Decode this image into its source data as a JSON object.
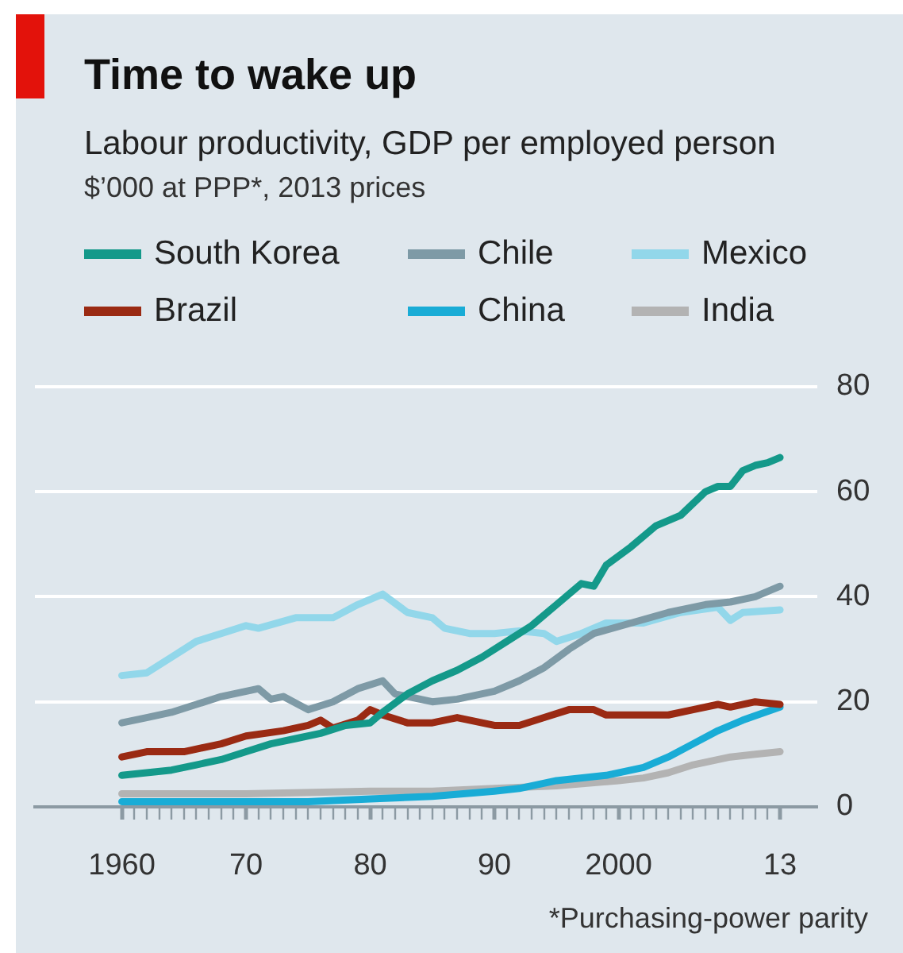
{
  "chart_data": {
    "type": "line",
    "title": "Time to wake up",
    "subtitle": "Labour productivity, GDP per employed person",
    "annotations": [
      "$’000 at PPP*, 2013 prices",
      "*Purchasing-power parity"
    ],
    "series": [
      {
        "name": "South Korea",
        "color": "#14998a",
        "x": [
          1960,
          1962,
          1964,
          1966,
          1968,
          1970,
          1972,
          1974,
          1976,
          1978,
          1980,
          1981,
          1983,
          1985,
          1987,
          1989,
          1991,
          1993,
          1995,
          1997,
          1998,
          1999,
          2001,
          2003,
          2005,
          2007,
          2008,
          2009,
          2010,
          2011,
          2012,
          2013
        ],
        "values": [
          6,
          6.5,
          7,
          8,
          9,
          10.5,
          12,
          13,
          14,
          15.5,
          16,
          18,
          21.5,
          24,
          26,
          28.5,
          31.5,
          34.5,
          38.5,
          42.5,
          42,
          46,
          49.5,
          53.5,
          55.5,
          60,
          61,
          61,
          64,
          65,
          65.5,
          66.5
        ]
      },
      {
        "name": "Chile",
        "color": "#7e9aa6",
        "x": [
          1960,
          1962,
          1964,
          1966,
          1968,
          1971,
          1972,
          1973,
          1975,
          1977,
          1979,
          1981,
          1982,
          1985,
          1987,
          1990,
          1992,
          1994,
          1996,
          1998,
          2001,
          2004,
          2007,
          2009,
          2011,
          2013
        ],
        "values": [
          16,
          17,
          18,
          19.5,
          21,
          22.5,
          20.5,
          21,
          18.5,
          20,
          22.5,
          24,
          21.5,
          20,
          20.5,
          22,
          24,
          26.5,
          30,
          33,
          35,
          37,
          38.5,
          39,
          40,
          42
        ]
      },
      {
        "name": "Mexico",
        "color": "#92d7ea",
        "x": [
          1960,
          1962,
          1964,
          1966,
          1968,
          1970,
          1971,
          1974,
          1977,
          1979,
          1981,
          1983,
          1985,
          1986,
          1988,
          1990,
          1992,
          1994,
          1995,
          1997,
          1999,
          2002,
          2005,
          2008,
          2009,
          2010,
          2013
        ],
        "values": [
          25,
          25.5,
          28.5,
          31.5,
          33,
          34.5,
          34,
          36,
          36,
          38.5,
          40.5,
          37,
          36,
          34,
          33,
          33,
          33.5,
          33,
          31.5,
          33,
          35,
          35,
          37,
          38,
          35.5,
          37,
          37.5
        ]
      },
      {
        "name": "Brazil",
        "color": "#9a2a13",
        "x": [
          1960,
          1962,
          1965,
          1968,
          1970,
          1973,
          1975,
          1976,
          1977,
          1979,
          1980,
          1981,
          1983,
          1985,
          1987,
          1989,
          1990,
          1992,
          1994,
          1996,
          1998,
          1999,
          2002,
          2004,
          2006,
          2008,
          2009,
          2011,
          2013
        ],
        "values": [
          9.5,
          10.5,
          10.5,
          12,
          13.5,
          14.5,
          15.5,
          16.5,
          15,
          16.5,
          18.5,
          17.5,
          16,
          16,
          17,
          16,
          15.5,
          15.5,
          17,
          18.5,
          18.5,
          17.5,
          17.5,
          17.5,
          18.5,
          19.5,
          19,
          20,
          19.5
        ]
      },
      {
        "name": "China",
        "color": "#19acd6",
        "x": [
          1960,
          1965,
          1970,
          1975,
          1980,
          1985,
          1990,
          1992,
          1995,
          1999,
          2002,
          2004,
          2006,
          2008,
          2010,
          2013
        ],
        "values": [
          1,
          1,
          1,
          1,
          1.5,
          2,
          3,
          3.5,
          5,
          6,
          7.5,
          9.5,
          12,
          14.5,
          16.5,
          19
        ]
      },
      {
        "name": "India",
        "color": "#b3b3b3",
        "x": [
          1960,
          1970,
          1980,
          1985,
          1990,
          1995,
          2000,
          2002,
          2004,
          2006,
          2009,
          2011,
          2013
        ],
        "values": [
          2.5,
          2.5,
          3,
          3,
          3.5,
          4,
          5,
          5.5,
          6.5,
          8,
          9.5,
          10,
          10.5
        ]
      }
    ],
    "xlim": [
      1953,
      2016
    ],
    "xticks": [
      1960,
      {
        "value": 1961,
        "label": null
      },
      {
        "value": 1962,
        "label": null
      },
      {
        "value": 1963,
        "label": null
      },
      {
        "value": 1964,
        "label": null
      },
      {
        "value": 1965,
        "label": null
      },
      {
        "value": 1966,
        "label": null
      },
      {
        "value": 1967,
        "label": null
      },
      {
        "value": 1968,
        "label": null
      },
      {
        "value": 1969,
        "label": null
      },
      {
        "value": 1970,
        "label": "70"
      },
      {
        "value": 1971,
        "label": null
      },
      {
        "value": 1972,
        "label": null
      },
      {
        "value": 1973,
        "label": null
      },
      {
        "value": 1974,
        "label": null
      },
      {
        "value": 1975,
        "label": null
      },
      {
        "value": 1976,
        "label": null
      },
      {
        "value": 1977,
        "label": null
      },
      {
        "value": 1978,
        "label": null
      },
      {
        "value": 1979,
        "label": null
      },
      {
        "value": 1980,
        "label": "80"
      },
      {
        "value": 1981,
        "label": null
      },
      {
        "value": 1982,
        "label": null
      },
      {
        "value": 1983,
        "label": null
      },
      {
        "value": 1984,
        "label": null
      },
      {
        "value": 1985,
        "label": null
      },
      {
        "value": 1986,
        "label": null
      },
      {
        "value": 1987,
        "label": null
      },
      {
        "value": 1988,
        "label": null
      },
      {
        "value": 1989,
        "label": null
      },
      {
        "value": 1990,
        "label": "90"
      },
      {
        "value": 1991,
        "label": null
      },
      {
        "value": 1992,
        "label": null
      },
      {
        "value": 1993,
        "label": null
      },
      {
        "value": 1994,
        "label": null
      },
      {
        "value": 1995,
        "label": null
      },
      {
        "value": 1996,
        "label": null
      },
      {
        "value": 1997,
        "label": null
      },
      {
        "value": 1998,
        "label": null
      },
      {
        "value": 1999,
        "label": null
      },
      2000,
      {
        "value": 2001,
        "label": null
      },
      {
        "value": 2002,
        "label": null
      },
      {
        "value": 2003,
        "label": null
      },
      {
        "value": 2004,
        "label": null
      },
      {
        "value": 2005,
        "label": null
      },
      {
        "value": 2006,
        "label": null
      },
      {
        "value": 2007,
        "label": null
      },
      {
        "value": 2008,
        "label": null
      },
      {
        "value": 2009,
        "label": null
      },
      {
        "value": 2010,
        "label": null
      },
      {
        "value": 2011,
        "label": null
      },
      {
        "value": 2012,
        "label": null
      },
      {
        "value": 2013,
        "label": "13"
      }
    ],
    "ylim": [
      0,
      80
    ],
    "yticks": [
      0,
      20,
      40,
      60,
      80
    ],
    "grid": "y",
    "legend": "top"
  }
}
